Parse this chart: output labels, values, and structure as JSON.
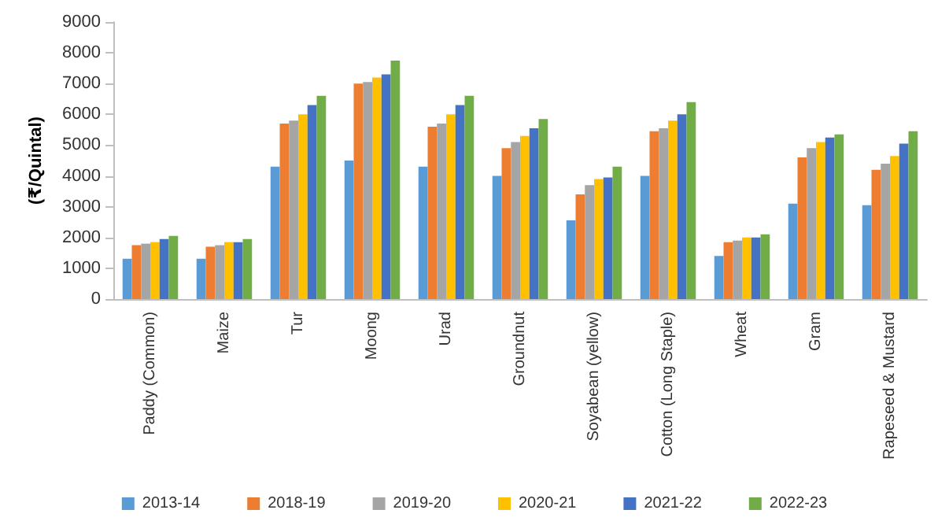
{
  "chart_data": {
    "type": "bar",
    "ylabel": "(₹/Quintal)",
    "categories": [
      "Paddy (Common)",
      "Maize",
      "Tur",
      "Moong",
      "Urad",
      "Groundnut",
      "Soyabean (yellow)",
      "Cotton (Long Staple)",
      "Wheat",
      "Gram",
      "Rapeseed & Mustard"
    ],
    "series": [
      {
        "name": "2013-14",
        "color": "#5b9bd5",
        "values": [
          1310,
          1310,
          4300,
          4500,
          4300,
          4000,
          2560,
          4000,
          1400,
          3100,
          3050
        ]
      },
      {
        "name": "2018-19",
        "color": "#ed7d31",
        "values": [
          1750,
          1700,
          5700,
          7000,
          5600,
          4900,
          3400,
          5450,
          1850,
          4600,
          4200
        ]
      },
      {
        "name": "2019-20",
        "color": "#a5a5a5",
        "values": [
          1800,
          1750,
          5800,
          7050,
          5700,
          5100,
          3700,
          5550,
          1900,
          4900,
          4400
        ]
      },
      {
        "name": "2020-21",
        "color": "#ffc000",
        "values": [
          1850,
          1850,
          6000,
          7200,
          6000,
          5300,
          3900,
          5800,
          2000,
          5100,
          4650
        ]
      },
      {
        "name": "2021-22",
        "color": "#4472c4",
        "values": [
          1950,
          1850,
          6300,
          7300,
          6300,
          5550,
          3950,
          6000,
          2000,
          5250,
          5050
        ]
      },
      {
        "name": "2022-23",
        "color": "#70ad47",
        "values": [
          2050,
          1950,
          6600,
          7750,
          6600,
          5850,
          4300,
          6400,
          2100,
          5350,
          5450
        ]
      }
    ],
    "ylim": [
      0,
      9000
    ],
    "yticks": [
      0,
      1000,
      2000,
      3000,
      4000,
      5000,
      6000,
      7000,
      8000,
      9000
    ],
    "grid": false,
    "legend": "bottom"
  }
}
